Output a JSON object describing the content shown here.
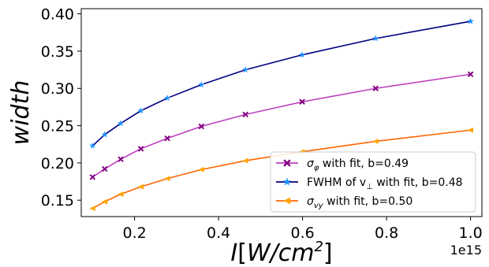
{
  "chart_data": {
    "type": "line",
    "xlabel_main": "I",
    "xlabel_unit": "W/cm",
    "xlabel_sup": "2",
    "ylabel": "width",
    "x_offset_label": "1e15",
    "xlim": [
      0.073,
      1.027
    ],
    "ylim": [
      0.128,
      0.407
    ],
    "x_ticks": [
      0.2,
      0.4,
      0.6,
      0.8,
      1.0
    ],
    "x_tick_labels": [
      "0.2",
      "0.4",
      "0.6",
      "0.8",
      "1.0"
    ],
    "y_ticks": [
      0.15,
      0.2,
      0.25,
      0.3,
      0.35,
      0.4
    ],
    "y_tick_labels": [
      "0.15",
      "0.20",
      "0.25",
      "0.30",
      "0.35",
      "0.40"
    ],
    "legend_position": "lower-right",
    "x": [
      0.1,
      0.129,
      0.167,
      0.215,
      0.278,
      0.359,
      0.464,
      0.599,
      0.774,
      1.0
    ],
    "series": [
      {
        "name": "σφ with fit, b=0.49",
        "legend_symbol": "σ",
        "legend_sub": "φ",
        "legend_rest": " with fit, b=0.49",
        "marker": "X",
        "color": "#800080",
        "fit_color": "#bf40bf",
        "values": [
          0.181,
          0.192,
          0.205,
          0.219,
          0.233,
          0.249,
          0.265,
          0.282,
          0.3,
          0.319
        ]
      },
      {
        "name": "FWHM of v⊥ with fit, b=0.48",
        "legend_symbol": "FWHM of v",
        "legend_sub": "⊥",
        "legend_rest": " with fit, b=0.48",
        "marker": "*",
        "color": "#1e90ff",
        "fit_color": "#000080",
        "values": [
          0.223,
          0.238,
          0.253,
          0.27,
          0.287,
          0.305,
          0.325,
          0.345,
          0.367,
          0.39
        ]
      },
      {
        "name": "σvy with fit, b=0.50",
        "legend_symbol": "σ",
        "legend_sub": "vy",
        "legend_rest": " with fit, b=0.50",
        "marker": "<",
        "color": "#ffa500",
        "fit_color": "#ff6600",
        "values": [
          0.139,
          0.148,
          0.158,
          0.168,
          0.179,
          0.191,
          0.203,
          0.215,
          0.229,
          0.244
        ]
      }
    ]
  }
}
